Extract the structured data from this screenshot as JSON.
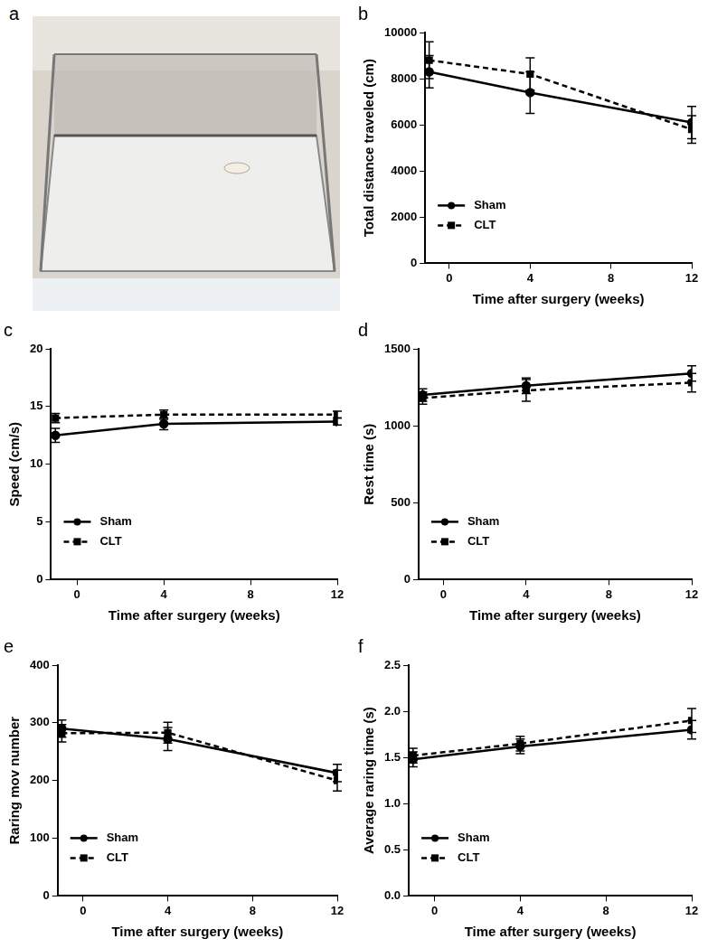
{
  "photo": {
    "label": "a"
  },
  "chart_data": [
    {
      "type": "line",
      "title": "b",
      "x_label": "Time after surgery (weeks)",
      "y_label": "Total distance traveled (cm)",
      "x": [
        -1,
        4,
        12
      ],
      "xlim": [
        -1.2,
        12
      ],
      "xticks": [
        0,
        4,
        8,
        12
      ],
      "ylim": [
        0,
        10000
      ],
      "yticks": [
        0,
        2000,
        4000,
        6000,
        8000,
        10000
      ],
      "grid": false,
      "legend": "lower left",
      "series": [
        {
          "name": "Sham",
          "color": "#000000",
          "marker": "circle",
          "line_style": "solid",
          "values": [
            8300,
            7400,
            6100
          ],
          "error": [
            700,
            900,
            700
          ]
        },
        {
          "name": "CLT",
          "color": "#000000",
          "marker": "square",
          "line_style": "dashed",
          "values": [
            8800,
            8200,
            5800
          ],
          "error": [
            800,
            700,
            600
          ]
        }
      ]
    },
    {
      "type": "line",
      "title": "c",
      "x_label": "Time after surgery (weeks)",
      "y_label": "Speed (cm/s)",
      "x": [
        -1,
        4,
        12
      ],
      "xlim": [
        -1.2,
        12
      ],
      "xticks": [
        0,
        4,
        8,
        12
      ],
      "ylim": [
        0,
        20
      ],
      "yticks": [
        0,
        5,
        10,
        15,
        20
      ],
      "grid": false,
      "legend": "lower left",
      "series": [
        {
          "name": "Sham",
          "color": "#000000",
          "marker": "circle",
          "line_style": "solid",
          "values": [
            12.5,
            13.5,
            13.7
          ],
          "error": [
            0.6,
            0.5,
            0.3
          ]
        },
        {
          "name": "CLT",
          "color": "#000000",
          "marker": "square",
          "line_style": "dashed",
          "values": [
            14.0,
            14.3,
            14.3
          ],
          "error": [
            0.4,
            0.4,
            0.3
          ]
        }
      ]
    },
    {
      "type": "line",
      "title": "d",
      "x_label": "Time after surgery (weeks)",
      "y_label": "Rest time (s)",
      "x": [
        -1,
        4,
        12
      ],
      "xlim": [
        -1.2,
        12
      ],
      "xticks": [
        0,
        4,
        8,
        12
      ],
      "ylim": [
        0,
        1500
      ],
      "yticks": [
        0,
        500,
        1000,
        1500
      ],
      "grid": false,
      "legend": "lower left",
      "series": [
        {
          "name": "Sham",
          "color": "#000000",
          "marker": "circle",
          "line_style": "solid",
          "values": [
            1200,
            1260,
            1340
          ],
          "error": [
            40,
            50,
            50
          ]
        },
        {
          "name": "CLT",
          "color": "#000000",
          "marker": "square",
          "line_style": "dashed",
          "values": [
            1180,
            1230,
            1280
          ],
          "error": [
            40,
            70,
            60
          ]
        }
      ]
    },
    {
      "type": "line",
      "title": "e",
      "x_label": "Time after surgery (weeks)",
      "y_label": "Raring mov number",
      "x": [
        -1,
        4,
        12
      ],
      "xlim": [
        -1.2,
        12
      ],
      "xticks": [
        0,
        4,
        8,
        12
      ],
      "ylim": [
        0,
        400
      ],
      "yticks": [
        0,
        100,
        200,
        300,
        400
      ],
      "grid": false,
      "legend": "lower left",
      "series": [
        {
          "name": "Sham",
          "color": "#000000",
          "marker": "circle",
          "line_style": "solid",
          "values": [
            290,
            272,
            213
          ],
          "error": [
            15,
            20,
            15
          ]
        },
        {
          "name": "CLT",
          "color": "#000000",
          "marker": "square",
          "line_style": "dashed",
          "values": [
            282,
            283,
            200
          ],
          "error": [
            15,
            18,
            18
          ]
        }
      ]
    },
    {
      "type": "line",
      "title": "f",
      "x_label": "Time after surgery (weeks)",
      "y_label": "Average raring time (s)",
      "x": [
        -1,
        4,
        12
      ],
      "xlim": [
        -1.2,
        12
      ],
      "xticks": [
        0,
        4,
        8,
        12
      ],
      "ylim": [
        0,
        2.5
      ],
      "yticks": [
        {
          "value": 0,
          "label": "0.0"
        },
        0.5,
        {
          "value": 1,
          "label": "1.0"
        },
        1.5,
        {
          "value": 2,
          "label": "2.0"
        },
        2.5
      ],
      "grid": false,
      "legend": "lower left",
      "series": [
        {
          "name": "Sham",
          "color": "#000000",
          "marker": "circle",
          "line_style": "solid",
          "values": [
            1.48,
            1.62,
            1.8
          ],
          "error": [
            0.08,
            0.08,
            0.1
          ]
        },
        {
          "name": "CLT",
          "color": "#000000",
          "marker": "square",
          "line_style": "dashed",
          "values": [
            1.52,
            1.65,
            1.9
          ],
          "error": [
            0.08,
            0.08,
            0.13
          ]
        }
      ]
    }
  ]
}
